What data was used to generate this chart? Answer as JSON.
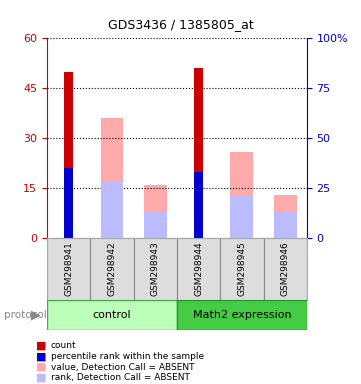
{
  "title": "GDS3436 / 1385805_at",
  "samples": [
    "GSM298941",
    "GSM298942",
    "GSM298943",
    "GSM298944",
    "GSM298945",
    "GSM298946"
  ],
  "groups": [
    "control",
    "control",
    "control",
    "Math2 expression",
    "Math2 expression",
    "Math2 expression"
  ],
  "group_colors": [
    "#aaffaa",
    "#44cc44"
  ],
  "count_values": [
    50,
    0,
    0,
    51,
    0,
    0
  ],
  "percentile_values": [
    21,
    0,
    0,
    20,
    0,
    0
  ],
  "absent_value_bars": [
    0,
    36,
    16,
    0,
    26,
    13
  ],
  "absent_rank_bars": [
    0,
    17,
    8,
    0,
    13,
    8
  ],
  "left_ylim": [
    0,
    60
  ],
  "right_ylim": [
    0,
    100
  ],
  "left_yticks": [
    0,
    15,
    30,
    45,
    60
  ],
  "right_yticks": [
    0,
    25,
    50,
    75,
    100
  ],
  "right_yticklabels": [
    "0",
    "25",
    "50",
    "75",
    "100%"
  ],
  "bar_width": 0.35,
  "count_color": "#cc0000",
  "percentile_color": "#0000cc",
  "absent_value_color": "#ffaaaa",
  "absent_rank_color": "#bbbbff",
  "bg_color": "#dddddd",
  "control_bg": "#ccffcc",
  "math2_bg": "#44bb44",
  "xlabel_color": "#000000",
  "left_axis_color": "#cc0000",
  "right_axis_color": "#0000cc"
}
